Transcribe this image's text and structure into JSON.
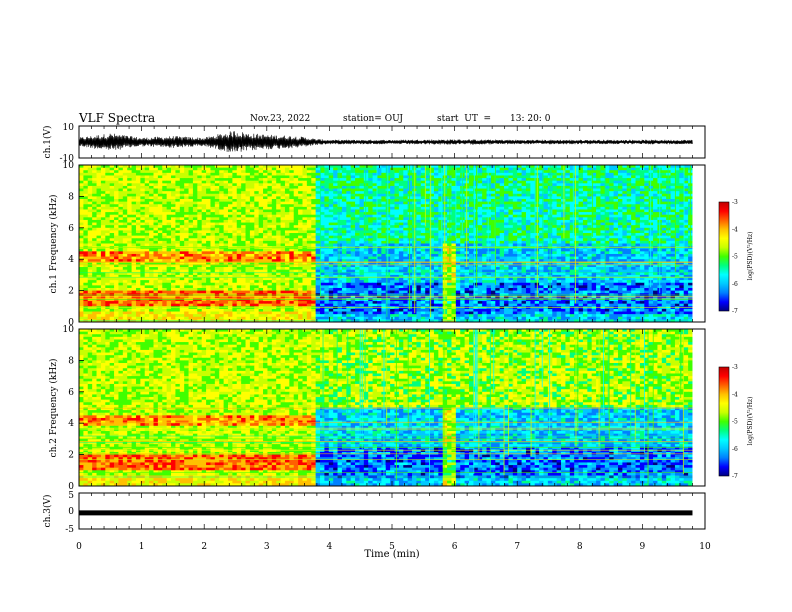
{
  "header": {
    "title": "VLF Spectra",
    "date": "Nov.23, 2022",
    "station_label": "station= OUJ",
    "start_label": "start  UT  =",
    "start_time": "13: 20: 0"
  },
  "colors": {
    "scale": [
      "#000080",
      "#0000ff",
      "#0080ff",
      "#00c8ff",
      "#00ffff",
      "#00ff80",
      "#40ff00",
      "#c8ff00",
      "#ffff00",
      "#ffc000",
      "#ff6000",
      "#ff0000",
      "#c00000"
    ],
    "waveform": "#000000"
  },
  "chart_data": [
    {
      "type": "line",
      "id": "ch1-waveform",
      "ylabel": "ch.1(V)",
      "ylim": [
        -10,
        10
      ],
      "yticks": [
        "10",
        "-10"
      ],
      "xlim": [
        0,
        10
      ],
      "envelope_x": [
        0,
        0.5,
        1.0,
        1.5,
        2.0,
        2.5,
        2.7,
        3.0,
        3.5,
        3.8,
        4.0,
        5.0,
        6.0,
        7.0,
        8.0,
        9.0,
        9.8
      ],
      "envelope_amplitude": [
        3,
        6,
        3,
        4,
        3,
        8,
        6,
        5,
        4,
        2,
        1.5,
        1.5,
        1.8,
        1.5,
        1.5,
        1.5,
        1.5
      ]
    },
    {
      "type": "heatmap",
      "id": "ch1-spectrogram",
      "ylabel": "ch.1 Frequency (kHz)",
      "ylim": [
        0,
        10
      ],
      "yticks": [
        "0",
        "2",
        "4",
        "6",
        "8",
        "10"
      ],
      "xlim": [
        0,
        10
      ],
      "colorbar": {
        "label": "log(PSD)(V²/Hz)",
        "range": [
          -7,
          -3
        ],
        "ticks": [
          "-3",
          "-4",
          "-5",
          "-6",
          "-7"
        ]
      }
    },
    {
      "type": "heatmap",
      "id": "ch2-spectrogram",
      "ylabel": "ch.2 Frequency (kHz)",
      "ylim": [
        0,
        10
      ],
      "yticks": [
        "0",
        "2",
        "4",
        "6",
        "8",
        "10"
      ],
      "xlim": [
        0,
        10
      ],
      "colorbar": {
        "label": "log(PSD)(V²/Hz)",
        "range": [
          -7,
          -3
        ],
        "ticks": [
          "-3",
          "-4",
          "-5",
          "-6",
          "-7"
        ]
      }
    },
    {
      "type": "line",
      "id": "ch3-waveform",
      "ylabel": "ch.3(V)",
      "ylim": [
        -5,
        5
      ],
      "yticks": [
        "5",
        "0",
        "-5"
      ],
      "xlim": [
        0,
        10
      ],
      "x": [
        0,
        9.8
      ],
      "y": [
        -0.6,
        -0.6
      ]
    }
  ],
  "xaxis": {
    "label": "Time  (min)",
    "ticks": [
      "0",
      "1",
      "2",
      "3",
      "4",
      "5",
      "6",
      "7",
      "8",
      "9",
      "10"
    ]
  }
}
